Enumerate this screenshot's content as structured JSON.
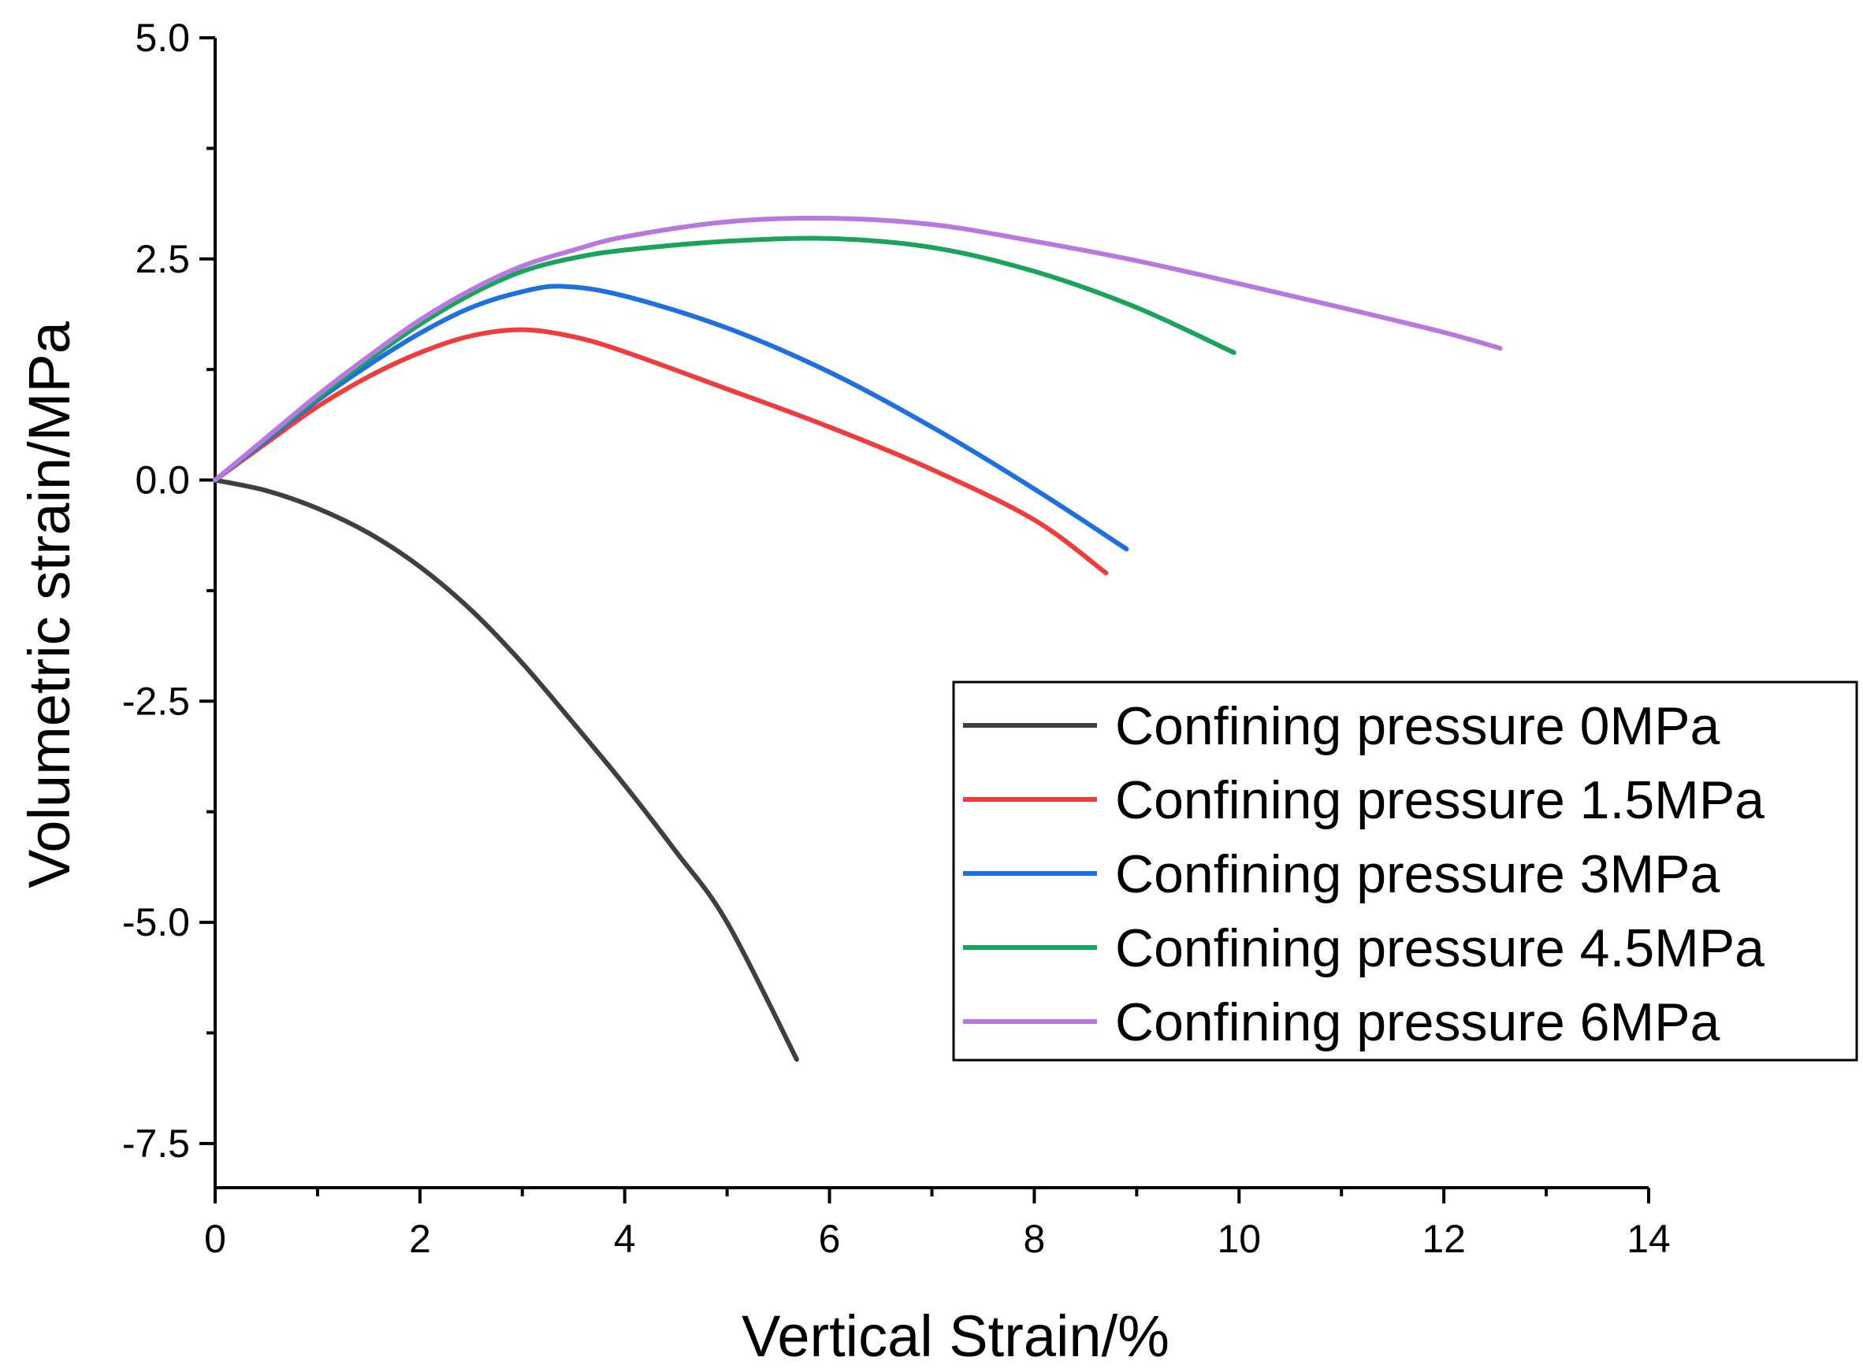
{
  "chart_data": {
    "type": "line",
    "title": "",
    "xlabel": "Vertical Strain/%",
    "ylabel": "Volumetric strain/MPa",
    "xlim": [
      0,
      14
    ],
    "ylim": [
      -8.0,
      5.0
    ],
    "x_ticks": [
      0,
      2,
      4,
      6,
      8,
      10,
      12,
      14
    ],
    "x_tick_labels": [
      "0",
      "2",
      "4",
      "6",
      "8",
      "10",
      "12",
      "14"
    ],
    "x_minor_ticks": [
      1,
      3,
      5,
      7,
      9,
      11,
      13
    ],
    "y_ticks": [
      -7.5,
      -5.0,
      -2.5,
      0.0,
      2.5,
      5.0
    ],
    "y_tick_labels": [
      "-7.5",
      "-5.0",
      "-2.5",
      "0.0",
      "2.5",
      "5.0"
    ],
    "y_minor_ticks": [
      -6.25,
      -3.75,
      -1.25,
      1.25,
      3.75
    ],
    "grid": false,
    "legend_position": "right",
    "series": [
      {
        "name": "Confining pressure 0MPa",
        "color": "#3f3f3f",
        "points": [
          [
            0,
            0
          ],
          [
            0.5,
            -0.12
          ],
          [
            1.0,
            -0.32
          ],
          [
            1.5,
            -0.6
          ],
          [
            2.0,
            -0.98
          ],
          [
            2.5,
            -1.47
          ],
          [
            3.0,
            -2.07
          ],
          [
            3.5,
            -2.75
          ],
          [
            4.0,
            -3.45
          ],
          [
            4.5,
            -4.2
          ],
          [
            5.0,
            -5.0
          ],
          [
            5.68,
            -6.55
          ]
        ]
      },
      {
        "name": "Confining pressure 1.5MPa",
        "color": "#f03c3c",
        "points": [
          [
            0,
            0
          ],
          [
            0.5,
            0.42
          ],
          [
            1.0,
            0.83
          ],
          [
            1.5,
            1.17
          ],
          [
            2.0,
            1.44
          ],
          [
            2.5,
            1.63
          ],
          [
            3.0,
            1.7
          ],
          [
            3.5,
            1.62
          ],
          [
            4.0,
            1.45
          ],
          [
            5.0,
            1.03
          ],
          [
            6.0,
            0.6
          ],
          [
            7.0,
            0.12
          ],
          [
            8.0,
            -0.45
          ],
          [
            8.7,
            -1.05
          ]
        ]
      },
      {
        "name": "Confining pressure 3MPa",
        "color": "#1e6fe0",
        "points": [
          [
            0,
            0
          ],
          [
            0.5,
            0.45
          ],
          [
            1.0,
            0.9
          ],
          [
            1.5,
            1.3
          ],
          [
            2.0,
            1.66
          ],
          [
            2.5,
            1.95
          ],
          [
            3.0,
            2.13
          ],
          [
            3.4,
            2.19
          ],
          [
            4.0,
            2.08
          ],
          [
            5.0,
            1.72
          ],
          [
            6.0,
            1.22
          ],
          [
            7.0,
            0.6
          ],
          [
            8.0,
            -0.1
          ],
          [
            8.9,
            -0.78
          ]
        ]
      },
      {
        "name": "Confining pressure 4.5MPa",
        "color": "#1aa35a",
        "points": [
          [
            0,
            0
          ],
          [
            0.5,
            0.47
          ],
          [
            1.0,
            0.93
          ],
          [
            1.5,
            1.36
          ],
          [
            2.0,
            1.76
          ],
          [
            2.5,
            2.1
          ],
          [
            3.0,
            2.36
          ],
          [
            3.5,
            2.51
          ],
          [
            4.0,
            2.6
          ],
          [
            5.0,
            2.7
          ],
          [
            6.0,
            2.73
          ],
          [
            7.0,
            2.63
          ],
          [
            8.0,
            2.36
          ],
          [
            9.0,
            1.95
          ],
          [
            9.95,
            1.44
          ]
        ]
      },
      {
        "name": "Confining pressure 6MPa",
        "color": "#b978e0",
        "points": [
          [
            0,
            0
          ],
          [
            0.5,
            0.48
          ],
          [
            1.0,
            0.96
          ],
          [
            1.5,
            1.4
          ],
          [
            2.0,
            1.81
          ],
          [
            2.5,
            2.15
          ],
          [
            3.0,
            2.42
          ],
          [
            3.5,
            2.6
          ],
          [
            4.0,
            2.75
          ],
          [
            5.0,
            2.92
          ],
          [
            6.0,
            2.96
          ],
          [
            7.0,
            2.89
          ],
          [
            8.0,
            2.7
          ],
          [
            9.0,
            2.48
          ],
          [
            10.0,
            2.22
          ],
          [
            11.0,
            1.95
          ],
          [
            12.0,
            1.67
          ],
          [
            12.55,
            1.49
          ]
        ]
      }
    ]
  }
}
